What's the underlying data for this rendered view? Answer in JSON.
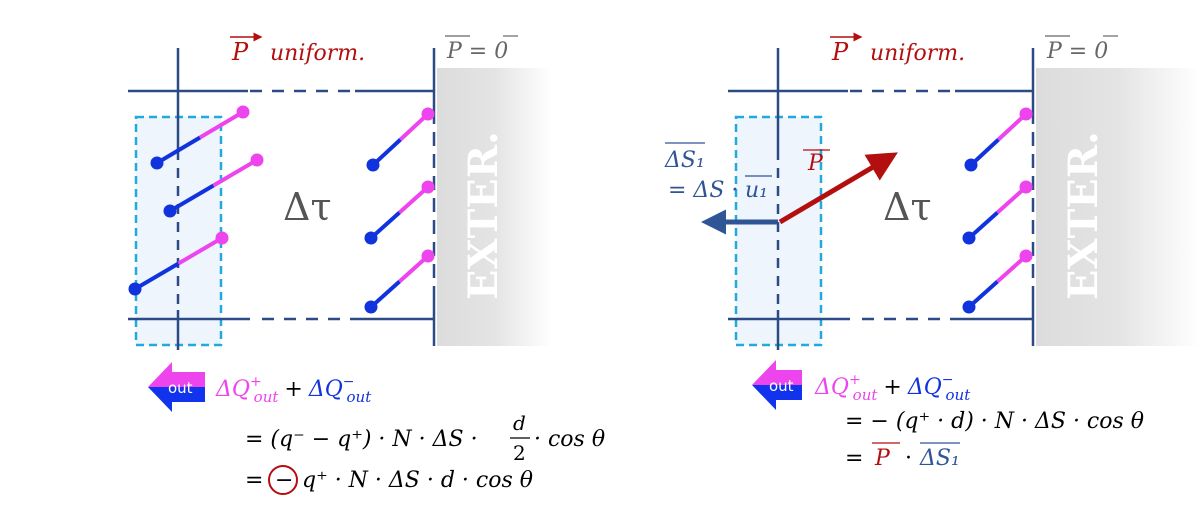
{
  "colors": {
    "frame": "#2c4a86",
    "dipole_pos": "#ee44ee",
    "dipole_neg": "#1133dd",
    "polarization": "#b30f0f",
    "cyan": "#22aadd",
    "gray": "#666666",
    "surface_vector": "#2f5597"
  },
  "left": {
    "title_vec": "P",
    "title_text": "uniform.",
    "exterior_label": "P = 0",
    "exterior_text": "EXTER.",
    "volume_label": "Δτ",
    "out_badge": "out",
    "eq": {
      "line1_a": "ΔQ",
      "line1_a_sup": "+",
      "line1_a_sub": "out",
      "plus": "+",
      "line1_b": "ΔQ",
      "line1_b_sup": "−",
      "line1_b_sub": "out",
      "line2": "= (q⁻ − q⁺) · N · ΔS ·",
      "frac_num": "d",
      "frac_den": "2",
      "line2_end": "· cos θ",
      "line3_eq": "=",
      "line3_circled": "−",
      "line3": "q⁺ · N · ΔS · d · cos θ"
    }
  },
  "right": {
    "title_vec": "P",
    "title_text": "uniform.",
    "exterior_label": "P = 0",
    "exterior_text": "EXTER.",
    "volume_label": "Δτ",
    "vector_label": "P",
    "surface_label": "ΔS₁",
    "surface_eq": "= ΔS ·",
    "unit_vec": "u₁",
    "out_badge": "out",
    "eq": {
      "line2": "= −  (q⁺ · d) · N · ΔS · cos θ",
      "line3_eq": "=",
      "line3_p": "P",
      "line3_dot": "·",
      "line3_s": "ΔS₁"
    }
  }
}
